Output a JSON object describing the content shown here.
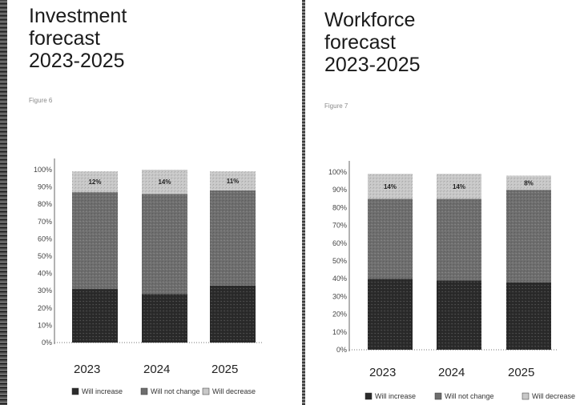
{
  "colors": {
    "increase": "#2b2b2b",
    "nochange": "#6e6e6e",
    "decrease": "#c8c8c8"
  },
  "chart_data": [
    {
      "type": "bar",
      "stacked": true,
      "title": "Investment\nforecast\n2023-2025",
      "figure_label": "Figure 6",
      "categories": [
        "2023",
        "2024",
        "2025"
      ],
      "ylim": [
        0,
        100
      ],
      "yticks": [
        "0%",
        "10%",
        "20%",
        "30%",
        "40%",
        "50%",
        "60%",
        "70%",
        "80%",
        "90%",
        "100%"
      ],
      "series": [
        {
          "name": "Will increase",
          "values": [
            31,
            28,
            33
          ]
        },
        {
          "name": "Will not change",
          "values": [
            56,
            58,
            55
          ]
        },
        {
          "name": "Will decrease",
          "values": [
            12,
            14,
            11
          ]
        }
      ],
      "data_labels": [
        "12%",
        "14%",
        "11%"
      ]
    },
    {
      "type": "bar",
      "stacked": true,
      "title": "Workforce\nforecast\n2023-2025",
      "figure_label": "Figure 7",
      "categories": [
        "2023",
        "2024",
        "2025"
      ],
      "ylim": [
        0,
        100
      ],
      "yticks": [
        "0%",
        "10%",
        "20%",
        "30%",
        "40%",
        "50%",
        "60%",
        "70%",
        "80%",
        "90%",
        "100%"
      ],
      "series": [
        {
          "name": "Will increase",
          "values": [
            40,
            39,
            38
          ]
        },
        {
          "name": "Will not change",
          "values": [
            45,
            46,
            52
          ]
        },
        {
          "name": "Will decrease",
          "values": [
            14,
            14,
            8
          ]
        }
      ],
      "data_labels": [
        "14%",
        "14%",
        "8%"
      ]
    }
  ]
}
